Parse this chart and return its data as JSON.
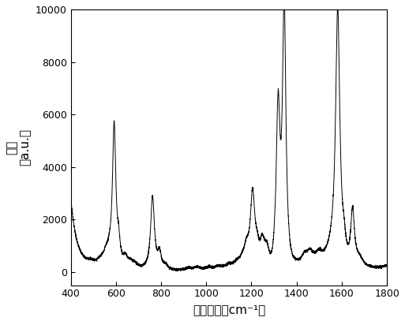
{
  "xlabel": "拉曼位移（cm⁻¹）",
  "ylabel_line1": "强度",
  "ylabel_line2": "（a.u.）",
  "xlim": [
    400,
    1800
  ],
  "ylim": [
    -500,
    10000
  ],
  "xticks": [
    400,
    600,
    800,
    1000,
    1200,
    1400,
    1600,
    1800
  ],
  "yticks": [
    0,
    2000,
    4000,
    6000,
    8000,
    10000
  ],
  "line_color": "#000000",
  "background_color": "#ffffff"
}
